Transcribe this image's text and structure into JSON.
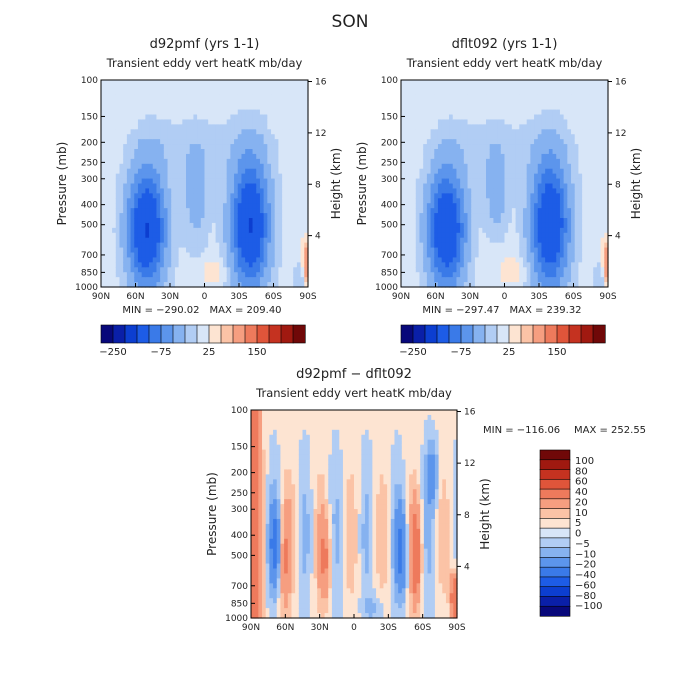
{
  "figure": {
    "title": "SON"
  },
  "chart_data": [
    {
      "type": "heatmap",
      "title": "d92pmf (yrs 1-1)",
      "subtitle": "Transient eddy vert heatK mb/day",
      "xlabel": "",
      "ylabel": "Pressure (mb)",
      "ylabel_right": "Height (km)",
      "x_ticks": [
        "90N",
        "60N",
        "30N",
        "0",
        "30S",
        "60S",
        "90S"
      ],
      "y_ticks": [
        "100",
        "150",
        "200",
        "250",
        "300",
        "400",
        "500",
        "700",
        "850",
        "1000"
      ],
      "y2_ticks": [
        "16",
        "12",
        "8",
        "4"
      ],
      "ylim": [
        1000,
        100
      ],
      "min_label": "MIN = −290.02",
      "max_label": "MAX = 209.40",
      "colorbar": {
        "colors": [
          "#08087a",
          "#0a1fa8",
          "#0c3ed0",
          "#1d5ce6",
          "#3a7ae8",
          "#5c95ec",
          "#86b2f0",
          "#b1cdf4",
          "#d8e6f8",
          "#fde4d2",
          "#fbc3a6",
          "#f69e80",
          "#ee7a5c",
          "#e0553a",
          "#c53220",
          "#a01910",
          "#700808"
        ],
        "labels": [
          "−250",
          "−75",
          "25",
          "150"
        ]
      },
      "field": "control"
    },
    {
      "type": "heatmap",
      "title": "dflt092 (yrs 1-1)",
      "subtitle": "Transient eddy vert heatK mb/day",
      "xlabel": "",
      "ylabel": "Pressure (mb)",
      "ylabel_right": "Height (km)",
      "x_ticks": [
        "90N",
        "60N",
        "30N",
        "0",
        "30S",
        "60S",
        "90S"
      ],
      "y_ticks": [
        "100",
        "150",
        "200",
        "250",
        "300",
        "400",
        "500",
        "700",
        "850",
        "1000"
      ],
      "y2_ticks": [
        "16",
        "12",
        "8",
        "4"
      ],
      "ylim": [
        1000,
        100
      ],
      "min_label": "MIN = −297.47",
      "max_label": "MAX = 239.32",
      "colorbar": {
        "colors": [
          "#08087a",
          "#0a1fa8",
          "#0c3ed0",
          "#1d5ce6",
          "#3a7ae8",
          "#5c95ec",
          "#86b2f0",
          "#b1cdf4",
          "#d8e6f8",
          "#fde4d2",
          "#fbc3a6",
          "#f69e80",
          "#ee7a5c",
          "#e0553a",
          "#c53220",
          "#a01910",
          "#700808"
        ],
        "labels": [
          "−250",
          "−75",
          "25",
          "150"
        ]
      },
      "field": "test"
    },
    {
      "type": "heatmap",
      "title": "d92pmf − dflt092",
      "subtitle": "Transient eddy vert heatK mb/day",
      "xlabel": "",
      "ylabel": "Pressure (mb)",
      "ylabel_right": "Height (km)",
      "x_ticks": [
        "90N",
        "60N",
        "30N",
        "0",
        "30S",
        "60S",
        "90S"
      ],
      "y_ticks": [
        "100",
        "150",
        "200",
        "250",
        "300",
        "400",
        "500",
        "700",
        "850",
        "1000"
      ],
      "y2_ticks": [
        "16",
        "12",
        "8",
        "4"
      ],
      "ylim": [
        1000,
        100
      ],
      "min_label": "MIN = −116.06",
      "max_label": "MAX = 252.55",
      "colorbar": {
        "colors": [
          "#08087a",
          "#0a1fa8",
          "#0c3ed0",
          "#1d5ce6",
          "#3a7ae8",
          "#5c95ec",
          "#86b2f0",
          "#b1cdf4",
          "#d8e6f8",
          "#fde4d2",
          "#fbc3a6",
          "#f69e80",
          "#ee7a5c",
          "#e0553a",
          "#c53220",
          "#a01910",
          "#700808"
        ],
        "labels": [
          "100",
          "80",
          "60",
          "40",
          "20",
          "10",
          "5",
          "0",
          "−5",
          "−10",
          "−20",
          "−40",
          "−60",
          "−80",
          "−100"
        ]
      },
      "field": "diff"
    }
  ]
}
